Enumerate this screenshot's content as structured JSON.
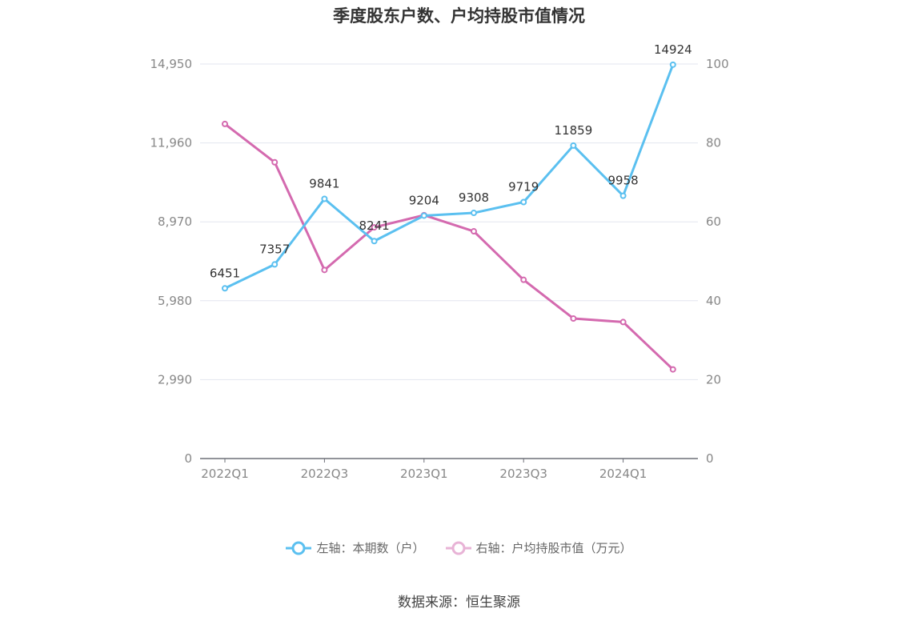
{
  "chart_data": {
    "type": "line",
    "title": "季度股东户数、户均持股市值情况",
    "categories": [
      "2022Q1",
      "2022Q2",
      "2022Q3",
      "2022Q4",
      "2023Q1",
      "2023Q2",
      "2023Q3",
      "2023Q4",
      "2024Q1",
      "2024Q2"
    ],
    "x_tick_labels": [
      "2022Q1",
      "2022Q3",
      "2023Q1",
      "2023Q3",
      "2024Q1"
    ],
    "left_axis": {
      "ylim": [
        0,
        14950
      ],
      "ticks": [
        "0",
        "2,990",
        "5,980",
        "8,970",
        "11,960",
        "14,950"
      ]
    },
    "right_axis": {
      "ylim": [
        0,
        100
      ],
      "ticks": [
        "0",
        "20",
        "40",
        "60",
        "80",
        "100"
      ]
    },
    "series": [
      {
        "name": "左轴：本期数（户）",
        "axis": "left",
        "color": "#5bc0f0",
        "values": [
          6451,
          7357,
          9841,
          8241,
          9204,
          9308,
          9719,
          11859,
          9958,
          14924
        ],
        "labels": [
          "6451",
          "7357",
          "9841",
          "8241",
          "9204",
          "9308",
          "9719",
          "11859",
          "9958",
          "14924"
        ]
      },
      {
        "name": "右轴：户均持股市值（万元）",
        "axis": "right",
        "color": "#d46aaf",
        "values": [
          84.8,
          75.1,
          47.8,
          58.6,
          61.7,
          57.6,
          45.3,
          35.5,
          34.6,
          22.6
        ]
      }
    ],
    "grid": true,
    "legend_position": "bottom"
  },
  "source": "数据来源：恒生聚源"
}
